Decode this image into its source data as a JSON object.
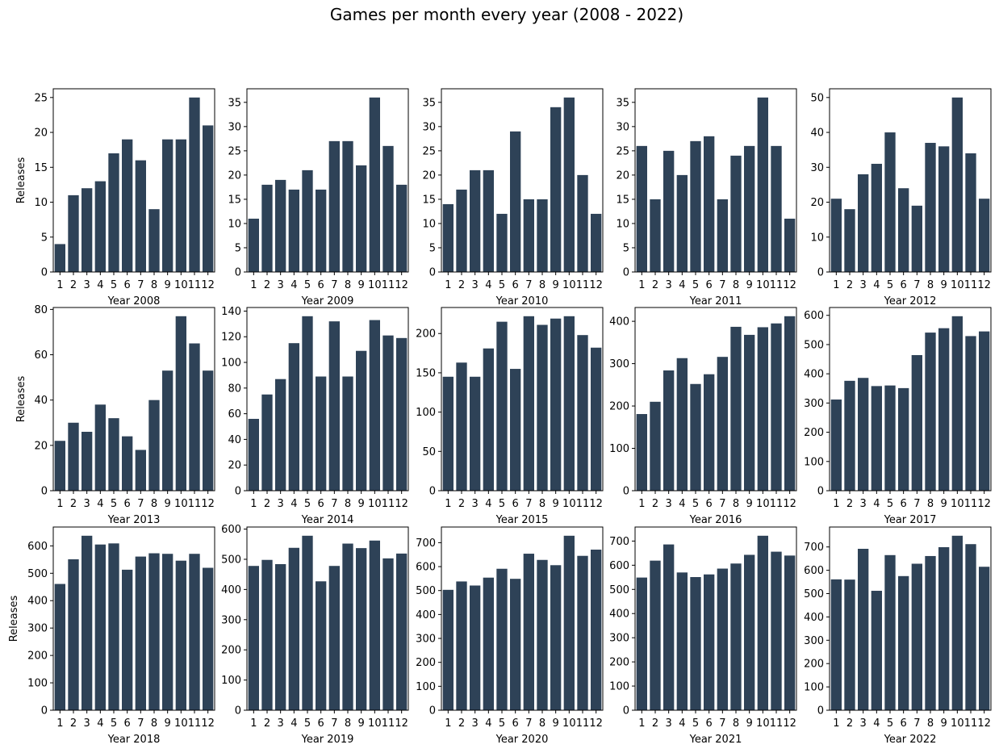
{
  "figure": {
    "title": "Games per month every year (2008 - 2022)",
    "bar_color": "#2e4257"
  },
  "chart_data": [
    {
      "type": "bar",
      "xlabel": "Year 2008",
      "ylabel": "Releases",
      "categories": [
        "1",
        "2",
        "3",
        "4",
        "5",
        "6",
        "7",
        "8",
        "9",
        "10",
        "11",
        "12"
      ],
      "values": [
        4,
        11,
        12,
        13,
        17,
        19,
        16,
        9,
        19,
        19,
        25,
        21
      ],
      "ylim": [
        0,
        26.25
      ],
      "yticks": [
        0,
        5,
        10,
        15,
        20,
        25
      ]
    },
    {
      "type": "bar",
      "xlabel": "Year 2009",
      "ylabel": "",
      "categories": [
        "1",
        "2",
        "3",
        "4",
        "5",
        "6",
        "7",
        "8",
        "9",
        "10",
        "11",
        "12"
      ],
      "values": [
        11,
        18,
        19,
        17,
        21,
        17,
        27,
        27,
        22,
        36,
        26,
        18
      ],
      "ylim": [
        0,
        37.8
      ],
      "yticks": [
        0,
        5,
        10,
        15,
        20,
        25,
        30,
        35
      ]
    },
    {
      "type": "bar",
      "xlabel": "Year 2010",
      "ylabel": "",
      "categories": [
        "1",
        "2",
        "3",
        "4",
        "5",
        "6",
        "7",
        "8",
        "9",
        "10",
        "11",
        "12"
      ],
      "values": [
        14,
        17,
        21,
        21,
        12,
        29,
        15,
        15,
        34,
        36,
        20,
        12
      ],
      "ylim": [
        0,
        37.8
      ],
      "yticks": [
        0,
        5,
        10,
        15,
        20,
        25,
        30,
        35
      ]
    },
    {
      "type": "bar",
      "xlabel": "Year 2011",
      "ylabel": "",
      "categories": [
        "1",
        "2",
        "3",
        "4",
        "5",
        "6",
        "7",
        "8",
        "9",
        "10",
        "11",
        "12"
      ],
      "values": [
        26,
        15,
        25,
        20,
        27,
        28,
        15,
        24,
        26,
        36,
        26,
        11
      ],
      "ylim": [
        0,
        37.8
      ],
      "yticks": [
        0,
        5,
        10,
        15,
        20,
        25,
        30,
        35
      ]
    },
    {
      "type": "bar",
      "xlabel": "Year 2012",
      "ylabel": "",
      "categories": [
        "1",
        "2",
        "3",
        "4",
        "5",
        "6",
        "7",
        "8",
        "9",
        "10",
        "11",
        "12"
      ],
      "values": [
        21,
        18,
        28,
        31,
        40,
        24,
        19,
        37,
        36,
        50,
        34,
        21
      ],
      "ylim": [
        0,
        52.5
      ],
      "yticks": [
        0,
        10,
        20,
        30,
        40,
        50
      ]
    },
    {
      "type": "bar",
      "xlabel": "Year 2013",
      "ylabel": "Releases",
      "categories": [
        "1",
        "2",
        "3",
        "4",
        "5",
        "6",
        "7",
        "8",
        "9",
        "10",
        "11",
        "12"
      ],
      "values": [
        22,
        30,
        26,
        38,
        32,
        24,
        18,
        40,
        53,
        77,
        65,
        53
      ],
      "ylim": [
        0,
        80.85
      ],
      "yticks": [
        0,
        20,
        40,
        60,
        80
      ]
    },
    {
      "type": "bar",
      "xlabel": "Year 2014",
      "ylabel": "",
      "categories": [
        "1",
        "2",
        "3",
        "4",
        "5",
        "6",
        "7",
        "8",
        "9",
        "10",
        "11",
        "12"
      ],
      "values": [
        56,
        75,
        87,
        115,
        136,
        89,
        132,
        89,
        109,
        133,
        121,
        119
      ],
      "ylim": [
        0,
        142.8
      ],
      "yticks": [
        0,
        20,
        40,
        60,
        80,
        100,
        120,
        140
      ]
    },
    {
      "type": "bar",
      "xlabel": "Year 2015",
      "ylabel": "",
      "categories": [
        "1",
        "2",
        "3",
        "4",
        "5",
        "6",
        "7",
        "8",
        "9",
        "10",
        "11",
        "12"
      ],
      "values": [
        145,
        163,
        145,
        181,
        215,
        155,
        222,
        211,
        219,
        222,
        198,
        182
      ],
      "ylim": [
        0,
        233.1
      ],
      "yticks": [
        0,
        50,
        100,
        150,
        200
      ]
    },
    {
      "type": "bar",
      "xlabel": "Year 2016",
      "ylabel": "",
      "categories": [
        "1",
        "2",
        "3",
        "4",
        "5",
        "6",
        "7",
        "8",
        "9",
        "10",
        "11",
        "12"
      ],
      "values": [
        181,
        210,
        284,
        313,
        252,
        275,
        316,
        387,
        368,
        386,
        395,
        412
      ],
      "ylim": [
        0,
        432.6
      ],
      "yticks": [
        0,
        100,
        200,
        300,
        400
      ]
    },
    {
      "type": "bar",
      "xlabel": "Year 2017",
      "ylabel": "",
      "categories": [
        "1",
        "2",
        "3",
        "4",
        "5",
        "6",
        "7",
        "8",
        "9",
        "10",
        "11",
        "12"
      ],
      "values": [
        312,
        376,
        386,
        358,
        360,
        351,
        464,
        541,
        556,
        597,
        529,
        545
      ],
      "ylim": [
        0,
        626.85
      ],
      "yticks": [
        0,
        100,
        200,
        300,
        400,
        500,
        600
      ]
    },
    {
      "type": "bar",
      "xlabel": "Year 2018",
      "ylabel": "Releases",
      "categories": [
        "1",
        "2",
        "3",
        "4",
        "5",
        "6",
        "7",
        "8",
        "9",
        "10",
        "11",
        "12"
      ],
      "values": [
        461,
        551,
        637,
        605,
        609,
        513,
        561,
        573,
        571,
        546,
        571,
        520
      ],
      "ylim": [
        0,
        668.85
      ],
      "yticks": [
        0,
        100,
        200,
        300,
        400,
        500,
        600
      ]
    },
    {
      "type": "bar",
      "xlabel": "Year 2019",
      "ylabel": "",
      "categories": [
        "1",
        "2",
        "3",
        "4",
        "5",
        "6",
        "7",
        "8",
        "9",
        "10",
        "11",
        "12"
      ],
      "values": [
        478,
        498,
        484,
        538,
        578,
        427,
        478,
        552,
        537,
        562,
        503,
        519
      ],
      "ylim": [
        0,
        606.9
      ],
      "yticks": [
        0,
        100,
        200,
        300,
        400,
        500,
        600
      ]
    },
    {
      "type": "bar",
      "xlabel": "Year 2020",
      "ylabel": "",
      "categories": [
        "1",
        "2",
        "3",
        "4",
        "5",
        "6",
        "7",
        "8",
        "9",
        "10",
        "11",
        "12"
      ],
      "values": [
        503,
        538,
        521,
        554,
        591,
        549,
        654,
        628,
        606,
        729,
        645,
        671
      ],
      "ylim": [
        0,
        765.45
      ],
      "yticks": [
        0,
        100,
        200,
        300,
        400,
        500,
        600,
        700
      ]
    },
    {
      "type": "bar",
      "xlabel": "Year 2021",
      "ylabel": "",
      "categories": [
        "1",
        "2",
        "3",
        "4",
        "5",
        "6",
        "7",
        "8",
        "9",
        "10",
        "11",
        "12"
      ],
      "values": [
        549,
        619,
        686,
        570,
        551,
        562,
        586,
        607,
        643,
        722,
        656,
        640
      ],
      "ylim": [
        0,
        758.1
      ],
      "yticks": [
        0,
        100,
        200,
        300,
        400,
        500,
        600,
        700
      ]
    },
    {
      "type": "bar",
      "xlabel": "Year 2022",
      "ylabel": "",
      "categories": [
        "1",
        "2",
        "3",
        "4",
        "5",
        "6",
        "7",
        "8",
        "9",
        "10",
        "11",
        "12"
      ],
      "values": [
        561,
        560,
        692,
        512,
        665,
        575,
        628,
        661,
        699,
        748,
        712,
        615
      ],
      "ylim": [
        0,
        785.4
      ],
      "yticks": [
        0,
        100,
        200,
        300,
        400,
        500,
        600,
        700
      ]
    }
  ]
}
